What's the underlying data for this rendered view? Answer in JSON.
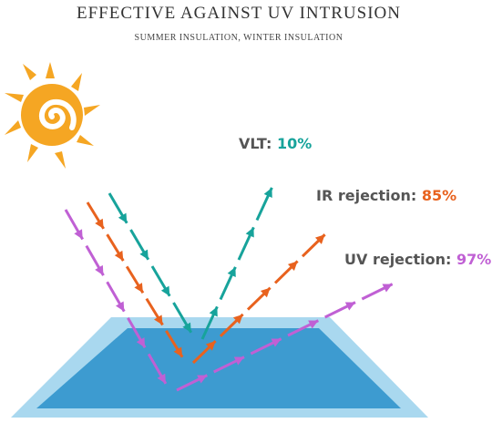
{
  "header": {
    "title": "EFFECTIVE AGAINST UV INTRUSION",
    "subtitle": "SUMMER INSULATION, WINTER INSULATION"
  },
  "labels": [
    {
      "name": "VLT:",
      "value": "10%",
      "color": "#17a39b"
    },
    {
      "name": "IR rejection:",
      "value": "85%",
      "color": "#e8621e"
    },
    {
      "name": "UV rejection:",
      "value": "97%",
      "color": "#c060d4"
    }
  ]
}
